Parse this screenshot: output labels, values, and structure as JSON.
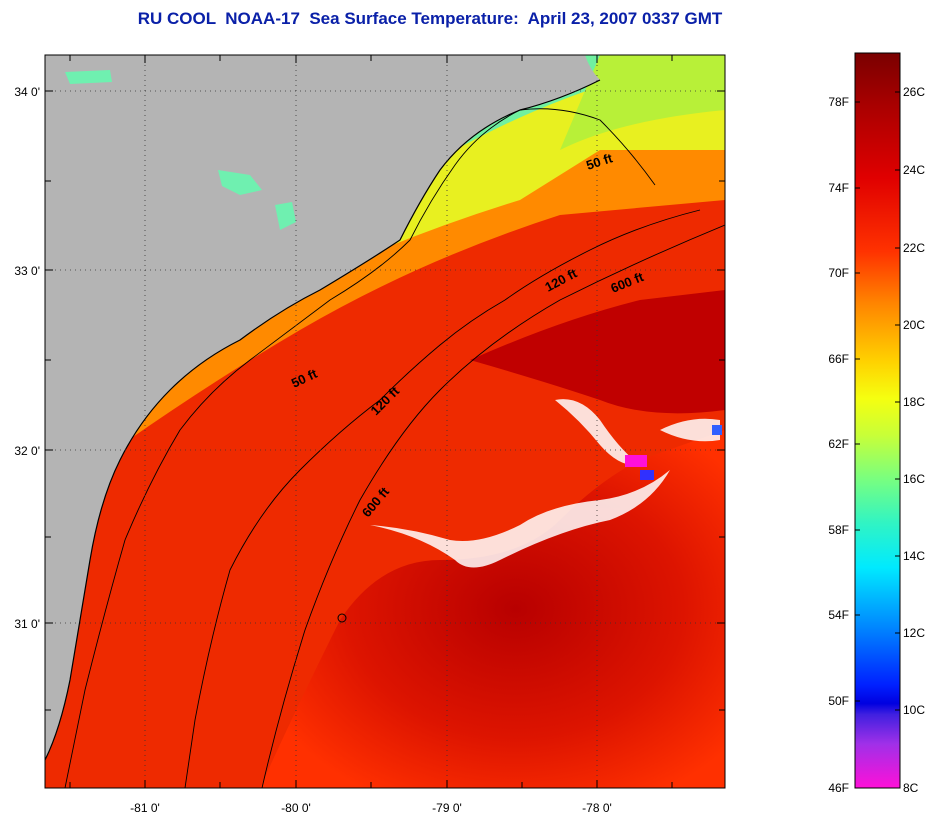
{
  "title": "RU COOL  NOAA-17  Sea Surface Temperature:  April 23, 2007 0337 GMT",
  "map": {
    "longitude_ticks": [
      "-81 0'",
      "-80 0'",
      "-79 0'",
      "-78 0'"
    ],
    "latitude_ticks": [
      "34 0'",
      "33 0'",
      "32 0'",
      "31 0'"
    ],
    "isobaths": [
      {
        "label": "50 ft"
      },
      {
        "label": "50 ft"
      },
      {
        "label": "120 ft"
      },
      {
        "label": "120 ft"
      },
      {
        "label": "600 ft"
      },
      {
        "label": "600 ft"
      }
    ],
    "land_color": "#b4b4b4"
  },
  "colorbar": {
    "fahrenheit_ticks": [
      "78F",
      "74F",
      "70F",
      "66F",
      "62F",
      "58F",
      "54F",
      "50F",
      "46F"
    ],
    "celsius_ticks": [
      "26C",
      "24C",
      "22C",
      "20C",
      "18C",
      "16C",
      "14C",
      "12C",
      "10C",
      "8C"
    ],
    "colors_top_to_bottom": [
      "#7a0000",
      "#c40000",
      "#ff1a00",
      "#ff7a00",
      "#ffd200",
      "#f2ff1a",
      "#a8ff50",
      "#2ff2b8",
      "#00f2ff",
      "#0090ff",
      "#0028ff",
      "#0000e0",
      "#8a2be2",
      "#ff10d8"
    ]
  }
}
